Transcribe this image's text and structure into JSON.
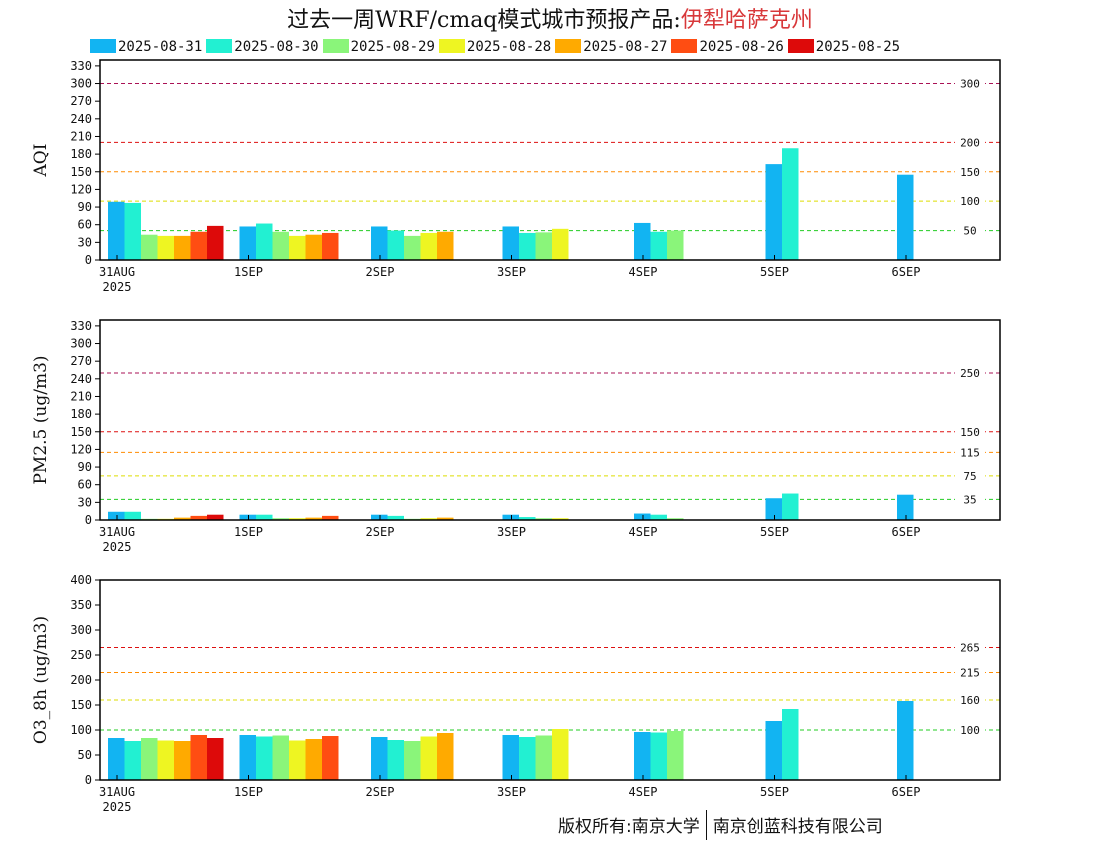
{
  "title": {
    "main": "过去一周WRF/cmaq模式城市预报产品:",
    "city": "伊犁哈萨克州"
  },
  "legend": [
    {
      "label": "2025-08-31",
      "color": "#12b4f2"
    },
    {
      "label": "2025-08-30",
      "color": "#22f0d2"
    },
    {
      "label": "2025-08-29",
      "color": "#8af57a"
    },
    {
      "label": "2025-08-28",
      "color": "#eef522"
    },
    {
      "label": "2025-08-27",
      "color": "#ffaa00"
    },
    {
      "label": "2025-08-26",
      "color": "#ff4d12"
    },
    {
      "label": "2025-08-25",
      "color": "#dd0a0a"
    }
  ],
  "footer": {
    "copyright": "版权所有:南京大学",
    "company": "南京创蓝科技有限公司"
  },
  "chart_data": [
    {
      "type": "bar",
      "ylabel": "AQI",
      "ylim": [
        0,
        340
      ],
      "yticks": [
        0,
        30,
        60,
        90,
        120,
        150,
        180,
        210,
        240,
        270,
        300,
        330
      ],
      "categories": [
        "31AUG",
        "1SEP",
        "2SEP",
        "3SEP",
        "4SEP",
        "5SEP",
        "6SEP"
      ],
      "year_label": "2025",
      "thresholds": [
        {
          "value": 50,
          "label": "50",
          "color": "#22cc22"
        },
        {
          "value": 100,
          "label": "100",
          "color": "#dddd00"
        },
        {
          "value": 150,
          "label": "150",
          "color": "#ff8c00"
        },
        {
          "value": 200,
          "label": "200",
          "color": "#dd1111"
        },
        {
          "value": 300,
          "label": "300",
          "color": "#aa1155"
        }
      ],
      "series": [
        {
          "name": "2025-08-31",
          "values": [
            99,
            57,
            57,
            57,
            63,
            163,
            145
          ]
        },
        {
          "name": "2025-08-30",
          "values": [
            97,
            62,
            50,
            46,
            48,
            190,
            null
          ]
        },
        {
          "name": "2025-08-29",
          "values": [
            43,
            48,
            41,
            47,
            50,
            null,
            null
          ]
        },
        {
          "name": "2025-08-28",
          "values": [
            41,
            41,
            46,
            53,
            null,
            null,
            null
          ]
        },
        {
          "name": "2025-08-27",
          "values": [
            41,
            43,
            48,
            null,
            null,
            null,
            null
          ]
        },
        {
          "name": "2025-08-26",
          "values": [
            48,
            46,
            null,
            null,
            null,
            null,
            null
          ]
        },
        {
          "name": "2025-08-25",
          "values": [
            58,
            null,
            null,
            null,
            null,
            null,
            null
          ]
        }
      ]
    },
    {
      "type": "bar",
      "ylabel": "PM2.5 (ug/m3)",
      "ylim": [
        0,
        340
      ],
      "yticks": [
        0,
        30,
        60,
        90,
        120,
        150,
        180,
        210,
        240,
        270,
        300,
        330
      ],
      "categories": [
        "31AUG",
        "1SEP",
        "2SEP",
        "3SEP",
        "4SEP",
        "5SEP",
        "6SEP"
      ],
      "year_label": "2025",
      "thresholds": [
        {
          "value": 35,
          "label": "35",
          "color": "#22cc22"
        },
        {
          "value": 75,
          "label": "75",
          "color": "#dddd00"
        },
        {
          "value": 115,
          "label": "115",
          "color": "#ff8c00"
        },
        {
          "value": 150,
          "label": "150",
          "color": "#dd1111"
        },
        {
          "value": 250,
          "label": "250",
          "color": "#aa1155"
        }
      ],
      "series": [
        {
          "name": "2025-08-31",
          "values": [
            14,
            9,
            9,
            9,
            11,
            37,
            43
          ]
        },
        {
          "name": "2025-08-30",
          "values": [
            14,
            9,
            7,
            5,
            9,
            45,
            null
          ]
        },
        {
          "name": "2025-08-29",
          "values": [
            2,
            3,
            2,
            3,
            3,
            null,
            null
          ]
        },
        {
          "name": "2025-08-28",
          "values": [
            2,
            3,
            3,
            3,
            null,
            null,
            null
          ]
        },
        {
          "name": "2025-08-27",
          "values": [
            4,
            4,
            4,
            null,
            null,
            null,
            null
          ]
        },
        {
          "name": "2025-08-26",
          "values": [
            7,
            7,
            null,
            null,
            null,
            null,
            null
          ]
        },
        {
          "name": "2025-08-25",
          "values": [
            9,
            null,
            null,
            null,
            null,
            null,
            null
          ]
        }
      ]
    },
    {
      "type": "bar",
      "ylabel": "O3_8h (ug/m3)",
      "ylim": [
        0,
        400
      ],
      "yticks": [
        0,
        50,
        100,
        150,
        200,
        250,
        300,
        350,
        400
      ],
      "categories": [
        "31AUG",
        "1SEP",
        "2SEP",
        "3SEP",
        "4SEP",
        "5SEP",
        "6SEP"
      ],
      "year_label": "2025",
      "thresholds": [
        {
          "value": 100,
          "label": "100",
          "color": "#22cc22"
        },
        {
          "value": 160,
          "label": "160",
          "color": "#dddd00"
        },
        {
          "value": 215,
          "label": "215",
          "color": "#ff8c00"
        },
        {
          "value": 265,
          "label": "265",
          "color": "#dd1111"
        }
      ],
      "series": [
        {
          "name": "2025-08-31",
          "values": [
            84,
            90,
            86,
            90,
            96,
            118,
            158
          ]
        },
        {
          "name": "2025-08-30",
          "values": [
            78,
            87,
            80,
            86,
            95,
            142,
            null
          ]
        },
        {
          "name": "2025-08-29",
          "values": [
            84,
            89,
            78,
            89,
            98,
            null,
            null
          ]
        },
        {
          "name": "2025-08-28",
          "values": [
            79,
            79,
            87,
            102,
            null,
            null,
            null
          ]
        },
        {
          "name": "2025-08-27",
          "values": [
            78,
            82,
            94,
            null,
            null,
            null,
            null
          ]
        },
        {
          "name": "2025-08-26",
          "values": [
            90,
            88,
            null,
            null,
            null,
            null,
            null
          ]
        },
        {
          "name": "2025-08-25",
          "values": [
            84,
            null,
            null,
            null,
            null,
            null,
            null
          ]
        }
      ]
    }
  ]
}
